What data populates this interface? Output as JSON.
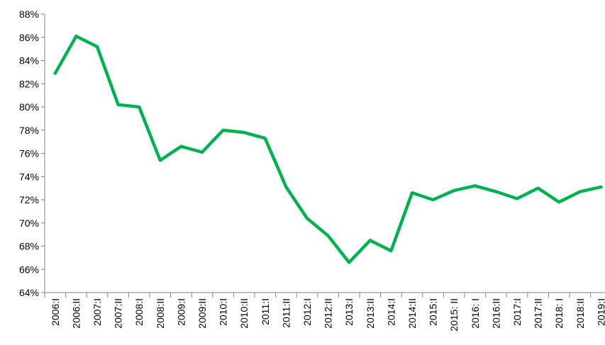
{
  "chart_data": {
    "type": "line",
    "categories": [
      "2006:I",
      "2006:II",
      "2007:I",
      "2007:II",
      "2008:I",
      "2008:II",
      "2009:I",
      "2009:II",
      "2010:I",
      "2010:II",
      "2011:I",
      "2011:II",
      "2012:I",
      "2012:II",
      "2013:I",
      "2013:II",
      "2014:I",
      "2014:II",
      "2015:I",
      "2015: II",
      "2016: I",
      "2016:II",
      "2017:I",
      "2017:II",
      "2018: I",
      "2018:II",
      "2019:I"
    ],
    "series": [
      {
        "color": "#00b050",
        "values": [
          82.9,
          86.1,
          85.2,
          80.2,
          80.0,
          75.4,
          76.6,
          76.1,
          78.0,
          77.8,
          77.3,
          73.1,
          70.4,
          68.9,
          66.6,
          68.5,
          67.6,
          72.6,
          72.0,
          72.8,
          73.2,
          72.7,
          72.1,
          73.0,
          71.8,
          72.7,
          73.1
        ]
      }
    ],
    "ylim": [
      64,
      88
    ],
    "yticks": [
      {
        "value": 64,
        "label": "64%"
      },
      {
        "value": 66,
        "label": "66%"
      },
      {
        "value": 68,
        "label": "68%"
      },
      {
        "value": 70,
        "label": "70%"
      },
      {
        "value": 72,
        "label": "72%"
      },
      {
        "value": 74,
        "label": "74%"
      },
      {
        "value": 76,
        "label": "76%"
      },
      {
        "value": 78,
        "label": "78%"
      },
      {
        "value": 80,
        "label": "80%"
      },
      {
        "value": 82,
        "label": "82%"
      },
      {
        "value": 84,
        "label": "84%"
      },
      {
        "value": 86,
        "label": "86%"
      },
      {
        "value": 88,
        "label": "88%"
      }
    ]
  }
}
